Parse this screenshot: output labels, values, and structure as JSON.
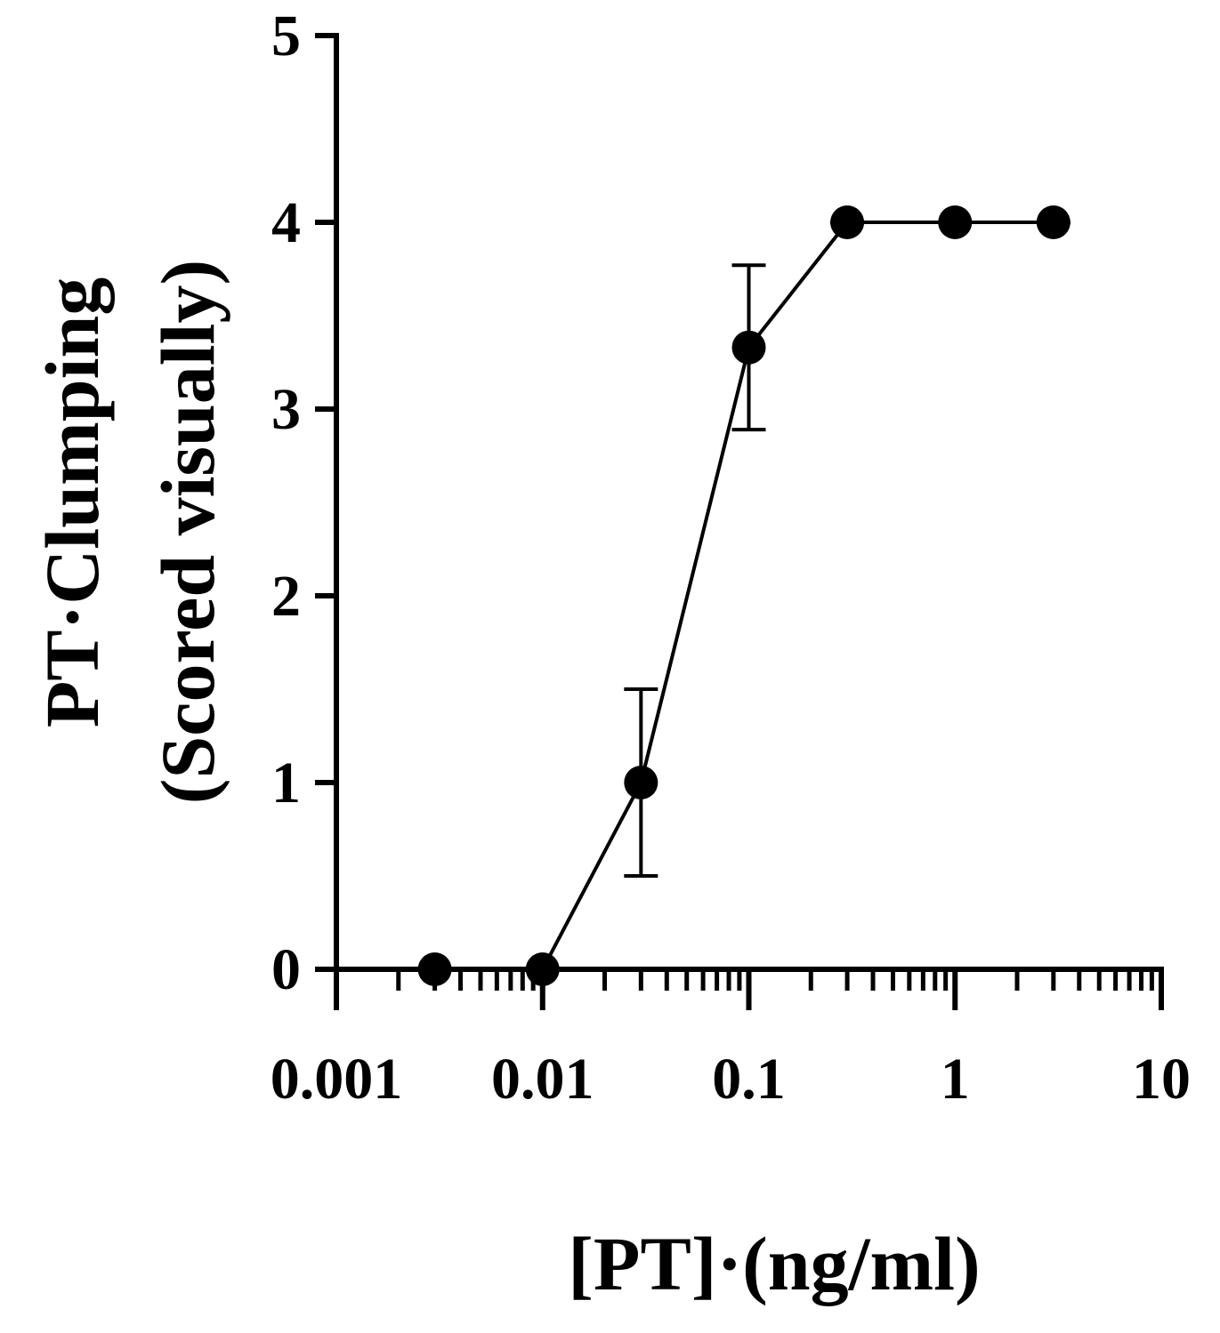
{
  "chart_data": {
    "type": "line",
    "x_label": "[PT]·(ng/ml)",
    "y_label": [
      "PT·Clumping",
      "(Scored visually)"
    ],
    "x": [
      0.003,
      0.01,
      0.03,
      0.1,
      0.3,
      1,
      3
    ],
    "series": [
      {
        "color": "#000000",
        "values": [
          0,
          0,
          1,
          3.33,
          4,
          4,
          4
        ],
        "errors": [
          0,
          0,
          0.5,
          0.44,
          0,
          0,
          0
        ]
      }
    ],
    "x_scale": "log",
    "xlim": [
      0.001,
      10
    ],
    "xticks": [
      0.001,
      0.01,
      0.1,
      1,
      10
    ],
    "xminorticks": [
      0.002,
      0.003,
      0.004,
      0.005,
      0.006,
      0.007,
      0.008,
      0.009,
      0.02,
      0.03,
      0.04,
      0.05,
      0.06,
      0.07,
      0.08,
      0.09,
      0.2,
      0.3,
      0.4,
      0.5,
      0.6,
      0.7,
      0.8,
      0.9,
      2,
      3,
      4,
      5,
      6,
      7,
      8,
      9
    ],
    "ylim": [
      0,
      5
    ],
    "yticks": [
      0,
      1,
      2,
      3,
      4,
      5
    ],
    "grid": false
  }
}
